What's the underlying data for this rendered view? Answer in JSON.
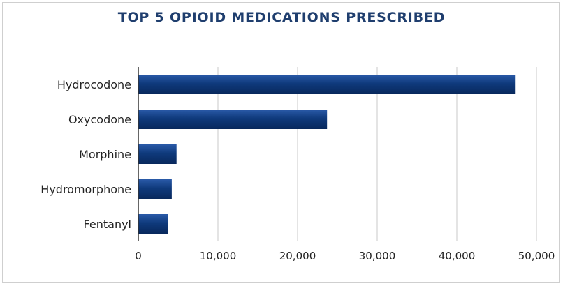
{
  "chart_data": {
    "type": "bar",
    "orientation": "horizontal",
    "title": "TOP 5 OPIOID MEDICATIONS PRESCRIBED",
    "xlabel": "",
    "ylabel": "",
    "categories": [
      "Hydrocodone",
      "Oxycodone",
      "Morphine",
      "Hydromorphone",
      "Fentanyl"
    ],
    "values": [
      47300,
      23700,
      4800,
      4200,
      3700
    ],
    "xlim": [
      0,
      50000
    ],
    "x_ticks": [
      0,
      10000,
      20000,
      30000,
      40000,
      50000
    ],
    "x_tick_labels": [
      "0",
      "10,000",
      "20,000",
      "30,000",
      "40,000",
      "50,000"
    ],
    "grid": true,
    "bar_color": "#0f3a7c",
    "title_color": "#1f3e6e"
  }
}
